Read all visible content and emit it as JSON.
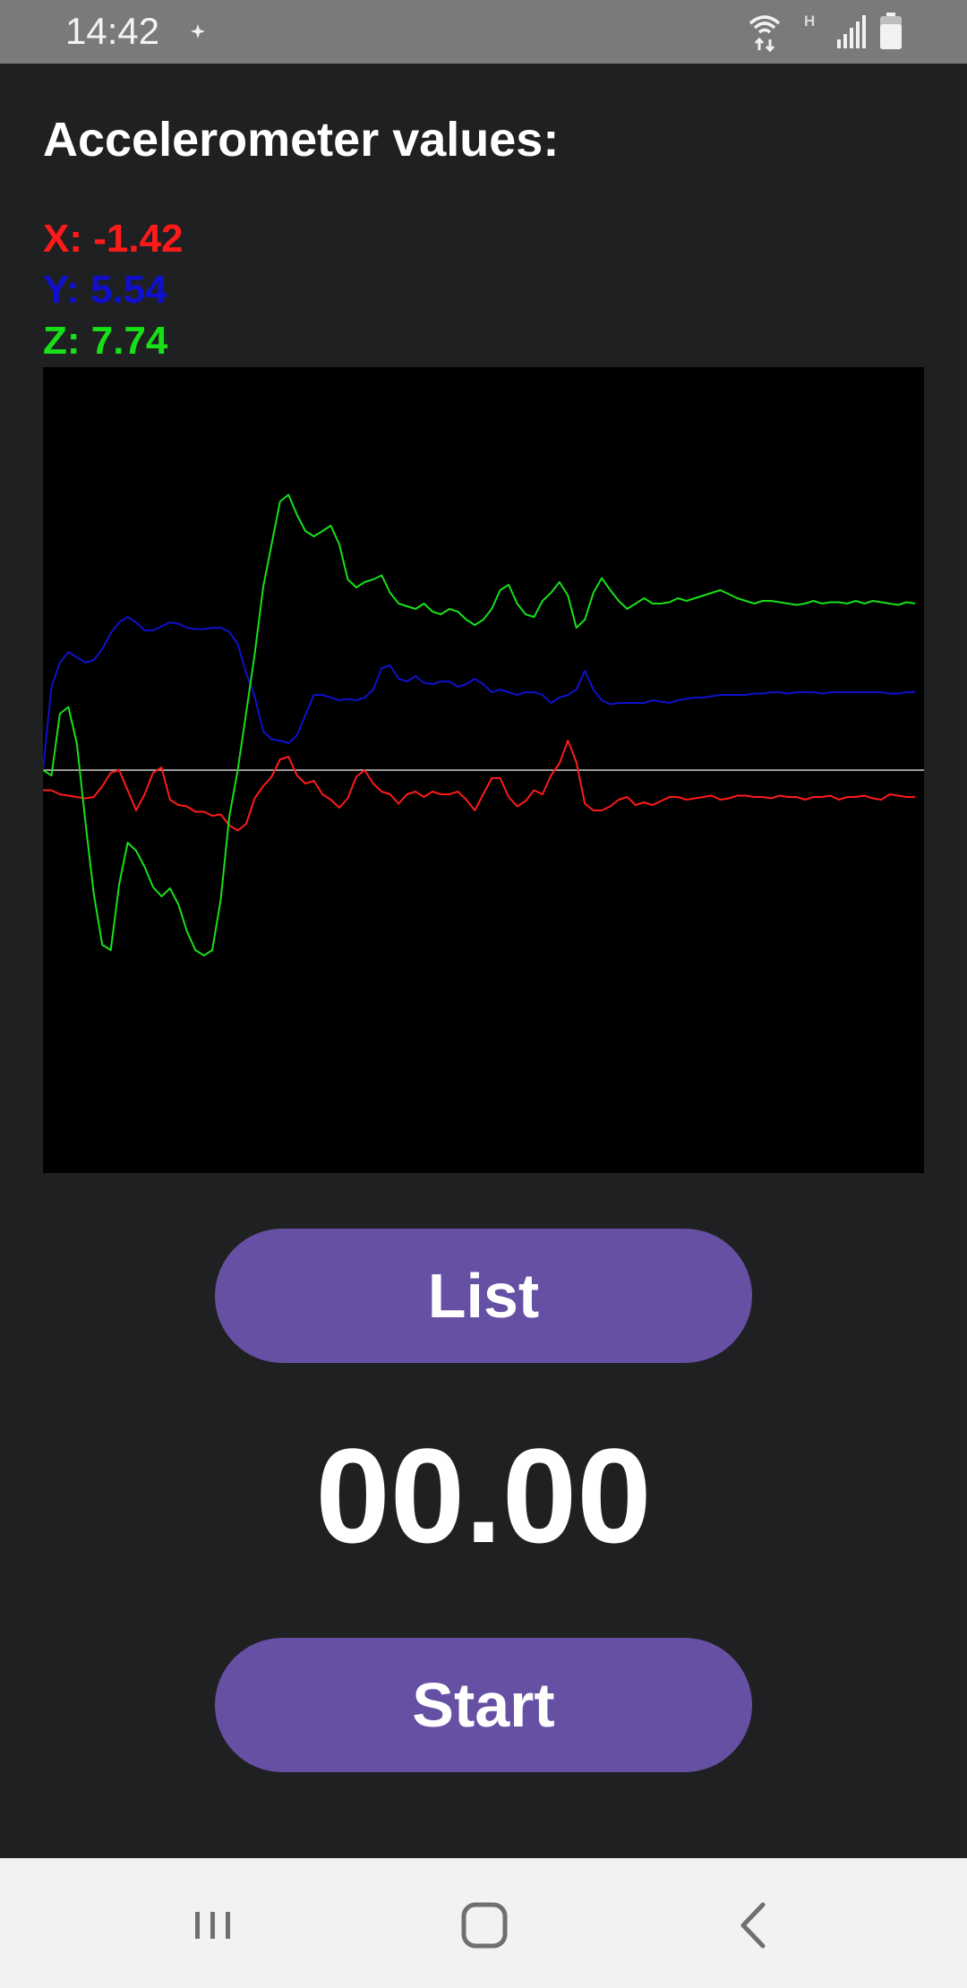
{
  "status_bar": {
    "time": "14:42",
    "network_type": "H",
    "icons": [
      "location-dot-icon",
      "wifi-icon",
      "signal-icon",
      "battery-icon"
    ]
  },
  "app": {
    "title": "Accelerometer values:",
    "readouts": {
      "x": "X: -1.42",
      "y": "Y: 5.54",
      "z": "Z: 7.74"
    },
    "colors": {
      "x": "#ff1a1a",
      "y": "#1010cc",
      "z": "#18e018",
      "accent": "#6650a3",
      "background": "#1f2022",
      "chart_background": "#000000",
      "baseline": "#cccccc"
    },
    "buttons": {
      "list": "List",
      "start": "Start"
    },
    "timer": "00.00"
  },
  "chart_data": {
    "type": "line",
    "title": "",
    "xlabel": "",
    "ylabel": "",
    "ylim": [
      -30,
      30
    ],
    "grid": false,
    "series": [
      {
        "key": "x",
        "values": [
          -1.5,
          -1.5,
          -1.8,
          -1.9,
          -2.0,
          -2.1,
          -2.0,
          -1.2,
          -0.2,
          0.0,
          -1.5,
          -3.0,
          -1.8,
          -0.2,
          0.2,
          -2.2,
          -2.6,
          -2.7,
          -3.1,
          -3.1,
          -3.4,
          -3.3,
          -4.1,
          -4.5,
          -4.0,
          -2.1,
          -1.2,
          -0.5,
          0.8,
          1.0,
          -0.4,
          -1.0,
          -0.8,
          -1.8,
          -2.2,
          -2.8,
          -2.1,
          -0.5,
          0.0,
          -1.0,
          -1.6,
          -1.8,
          -2.5,
          -1.8,
          -1.6,
          -2.0,
          -1.6,
          -1.8,
          -1.8,
          -1.6,
          -2.2,
          -3.0,
          -1.8,
          -0.6,
          -0.6,
          -2.0,
          -2.7,
          -2.3,
          -1.5,
          -1.8,
          -0.4,
          0.5,
          2.2,
          0.6,
          -2.5,
          -3.0,
          -3.0,
          -2.7,
          -2.2,
          -2.0,
          -2.6,
          -2.4,
          -2.6,
          -2.3,
          -2.0,
          -2.0,
          -2.2,
          -2.1,
          -2.0,
          -1.9,
          -2.2,
          -2.1,
          -1.9,
          -1.9,
          -2.0,
          -2.0,
          -2.1,
          -1.9,
          -2.0,
          -2.0,
          -2.2,
          -2.0,
          -2.0,
          -1.9,
          -2.2,
          -2.0,
          -2.0,
          -1.9,
          -2.1,
          -2.2,
          -1.8,
          -1.9,
          -2.0,
          -2.0
        ]
      },
      {
        "key": "y",
        "values": [
          0.0,
          6.2,
          8.0,
          8.8,
          8.4,
          8.0,
          8.2,
          9.0,
          10.2,
          11.0,
          11.4,
          11.0,
          10.4,
          10.4,
          10.7,
          11.0,
          10.9,
          10.6,
          10.5,
          10.5,
          10.6,
          10.6,
          10.3,
          9.4,
          7.2,
          5.5,
          2.9,
          2.3,
          2.2,
          2.0,
          2.6,
          4.1,
          5.6,
          5.6,
          5.4,
          5.2,
          5.3,
          5.2,
          5.4,
          6.0,
          7.6,
          7.8,
          6.8,
          6.6,
          7.0,
          6.5,
          6.4,
          6.6,
          6.6,
          6.2,
          6.4,
          6.8,
          6.4,
          5.8,
          6.0,
          5.8,
          5.6,
          5.8,
          5.8,
          5.6,
          5.0,
          5.4,
          5.6,
          6.0,
          7.4,
          6.0,
          5.2,
          4.9,
          5.0,
          5.0,
          5.0,
          5.0,
          5.2,
          5.1,
          5.0,
          5.2,
          5.3,
          5.4,
          5.4,
          5.5,
          5.6,
          5.6,
          5.6,
          5.6,
          5.7,
          5.7,
          5.8,
          5.8,
          5.7,
          5.8,
          5.8,
          5.8,
          5.7,
          5.8,
          5.8,
          5.8,
          5.8,
          5.8,
          5.8,
          5.8,
          5.7,
          5.7,
          5.8,
          5.8
        ]
      },
      {
        "key": "z",
        "values": [
          0.0,
          -0.4,
          4.2,
          4.7,
          2.0,
          -3.8,
          -9.2,
          -13.0,
          -13.4,
          -8.5,
          -5.4,
          -6.0,
          -7.2,
          -8.7,
          -9.4,
          -8.8,
          -10.0,
          -12.0,
          -13.4,
          -13.8,
          -13.4,
          -9.6,
          -3.5,
          0.0,
          4.3,
          8.6,
          13.6,
          16.8,
          20.0,
          20.5,
          19.0,
          17.8,
          17.4,
          17.8,
          18.2,
          16.8,
          14.2,
          13.6,
          14.0,
          14.2,
          14.5,
          13.2,
          12.4,
          12.2,
          12.0,
          12.4,
          11.8,
          11.6,
          12.0,
          11.8,
          11.2,
          10.8,
          11.2,
          12.0,
          13.4,
          13.8,
          12.4,
          11.6,
          11.4,
          12.6,
          13.2,
          14.0,
          13.0,
          10.6,
          11.2,
          13.2,
          14.3,
          13.4,
          12.6,
          12.0,
          12.4,
          12.8,
          12.4,
          12.4,
          12.5,
          12.8,
          12.6,
          12.8,
          13.0,
          13.2,
          13.4,
          13.1,
          12.8,
          12.6,
          12.4,
          12.6,
          12.6,
          12.5,
          12.4,
          12.3,
          12.4,
          12.6,
          12.4,
          12.5,
          12.5,
          12.4,
          12.6,
          12.4,
          12.6,
          12.5,
          12.4,
          12.3,
          12.5,
          12.4
        ]
      }
    ]
  }
}
